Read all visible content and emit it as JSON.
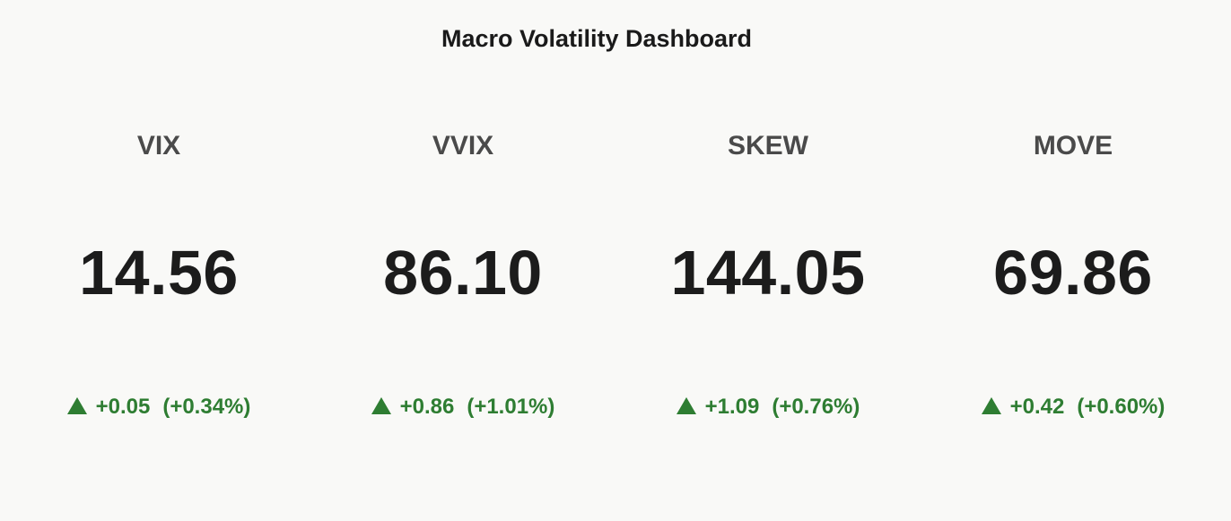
{
  "title": "Macro Volatility Dashboard",
  "colors": {
    "background": "#f9f9f7",
    "positive": "#2e7d32",
    "label": "#4a4a4a",
    "value": "#1c1c1c"
  },
  "chart_data": {
    "type": "table",
    "title": "Macro Volatility Dashboard",
    "indicators": [
      {
        "name": "VIX",
        "value": "14.56",
        "direction": "up",
        "arrow_icon": "triangle-up-icon",
        "change": "+0.05",
        "change_pct": "(+0.34%)"
      },
      {
        "name": "VVIX",
        "value": "86.10",
        "direction": "up",
        "arrow_icon": "triangle-up-icon",
        "change": "+0.86",
        "change_pct": "(+1.01%)"
      },
      {
        "name": "SKEW",
        "value": "144.05",
        "direction": "up",
        "arrow_icon": "triangle-up-icon",
        "change": "+1.09",
        "change_pct": "(+0.76%)"
      },
      {
        "name": "MOVE",
        "value": "69.86",
        "direction": "up",
        "arrow_icon": "triangle-up-icon",
        "change": "+0.42",
        "change_pct": "(+0.60%)"
      }
    ]
  }
}
